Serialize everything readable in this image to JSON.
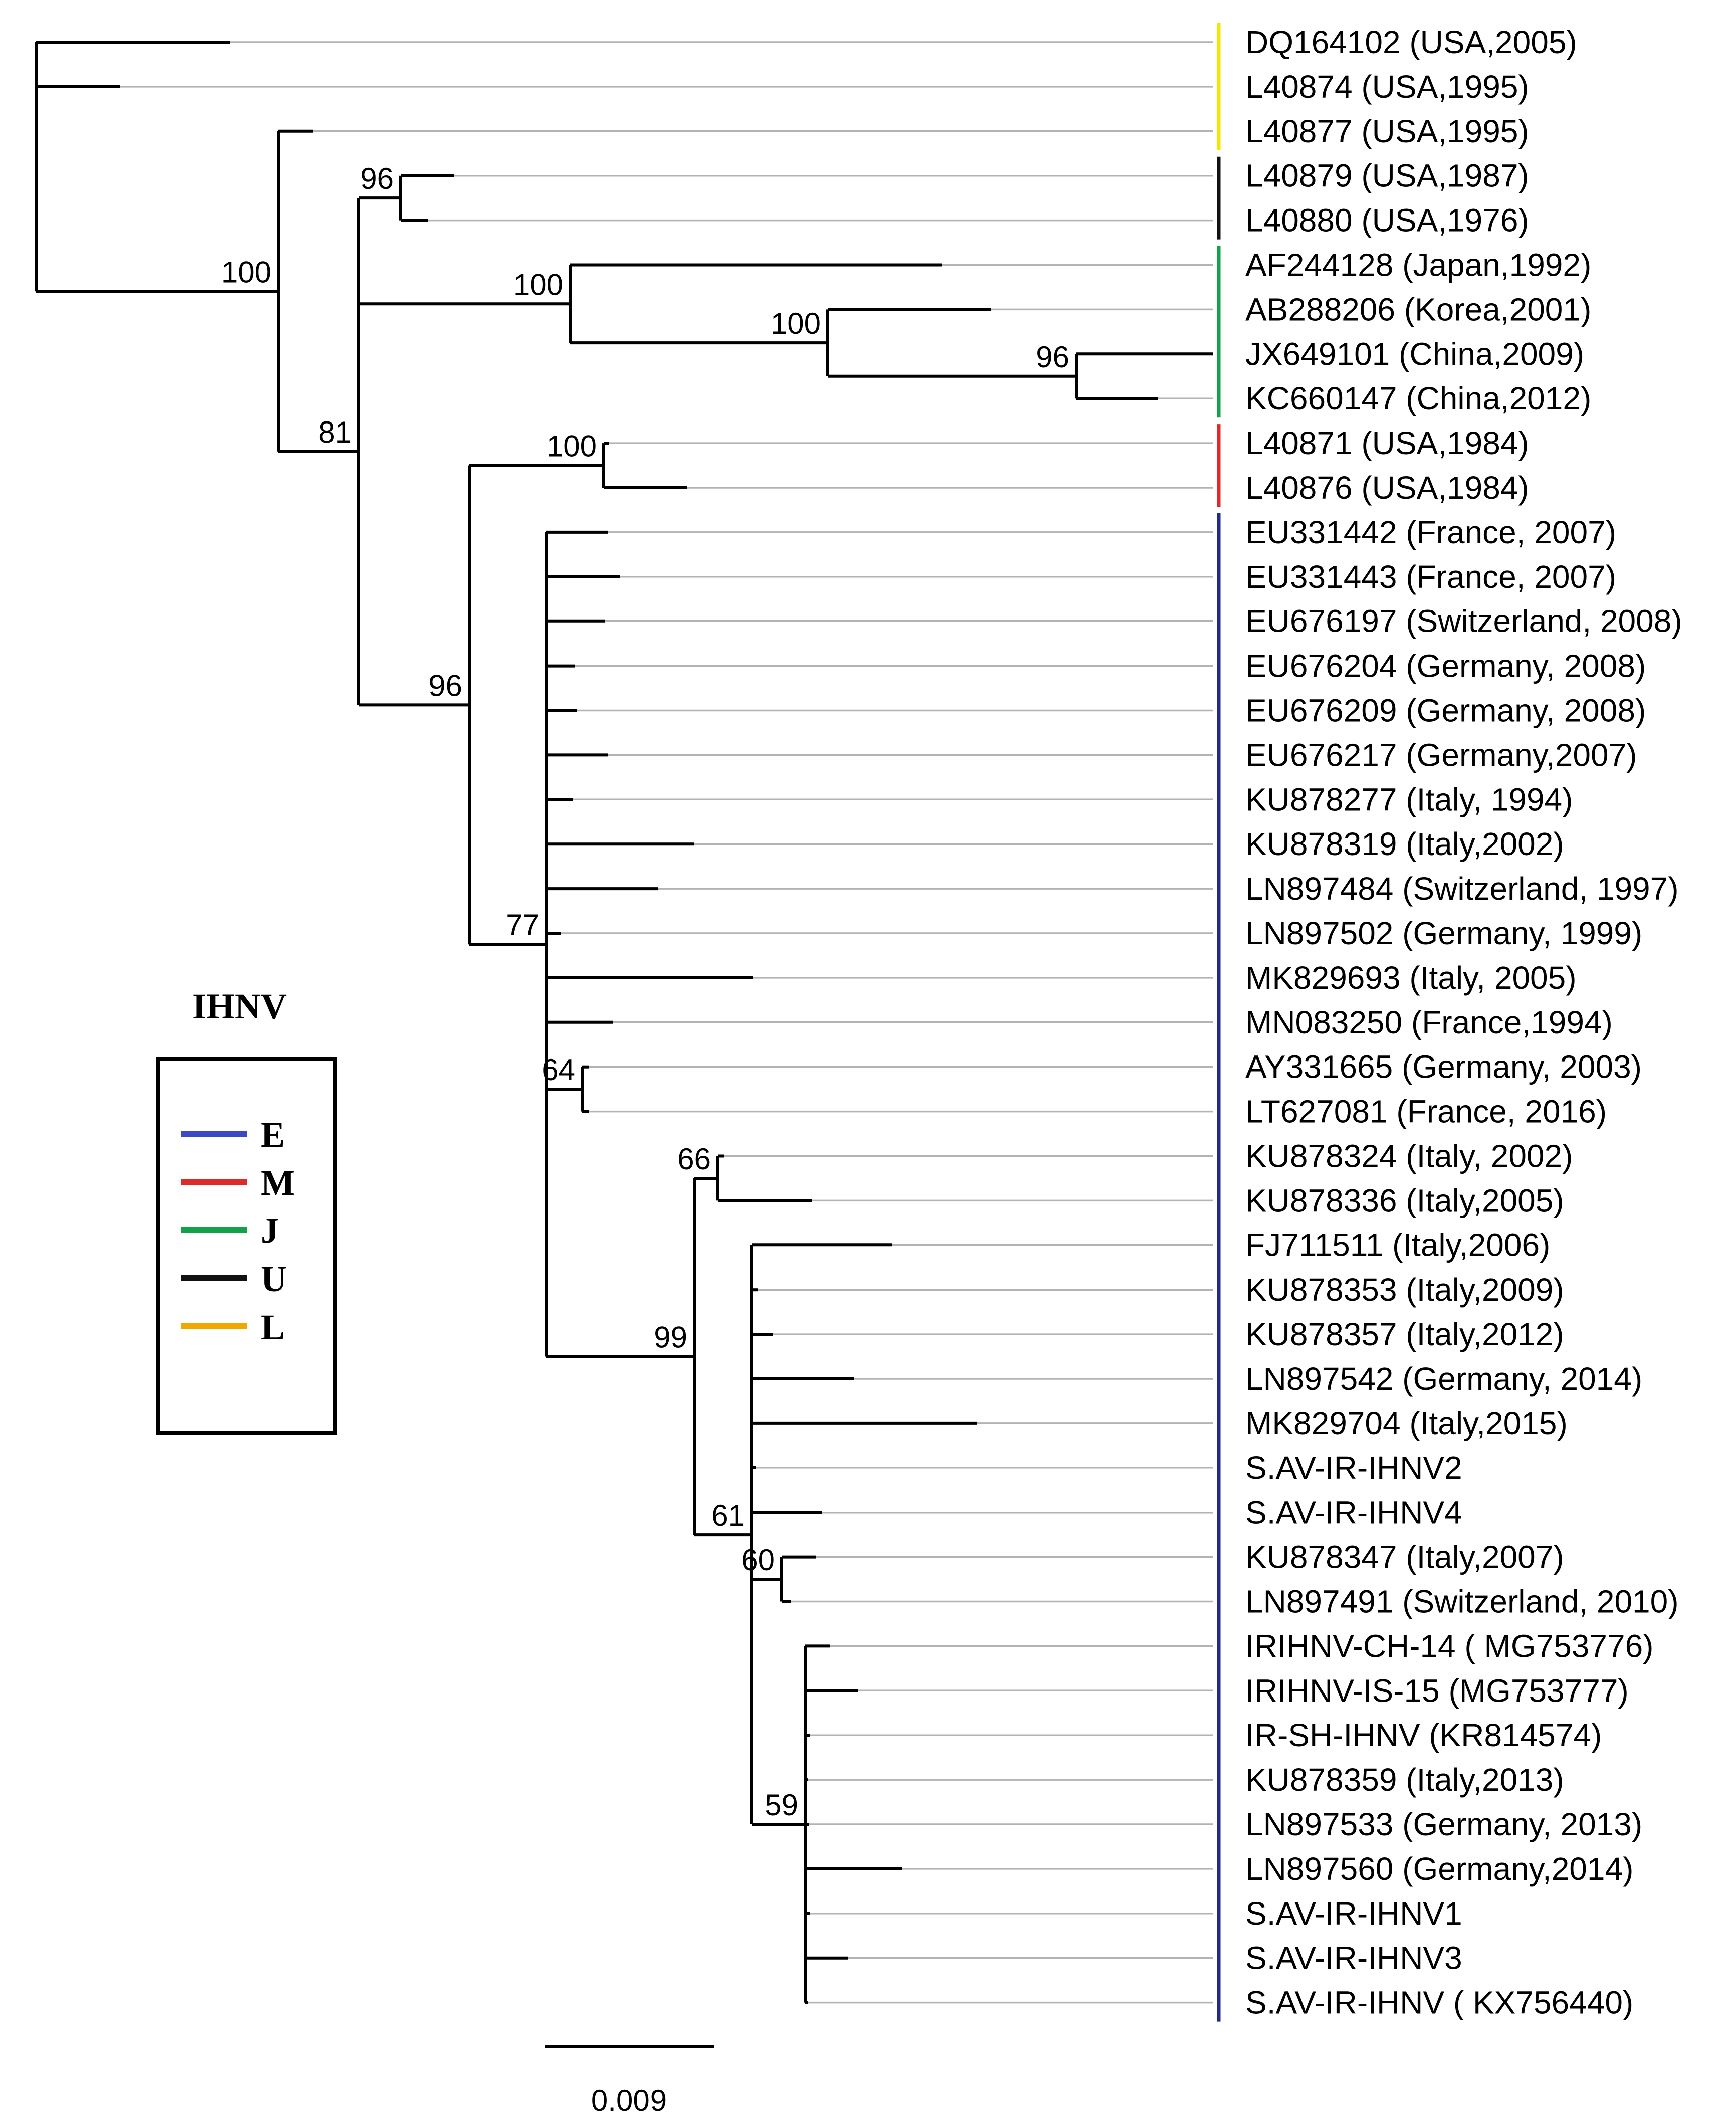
{
  "figure": {
    "scale_bar_label": "0.009",
    "legend_title": "IHNV",
    "legend": [
      {
        "label": "E",
        "color": "#3b49c4"
      },
      {
        "label": "M",
        "color": "#e02a2a"
      },
      {
        "label": "J",
        "color": "#12a14a"
      },
      {
        "label": "U",
        "color": "#111111"
      },
      {
        "label": "L",
        "color": "#f0a800"
      }
    ],
    "taxa": [
      "DQ164102 (USA,2005)",
      "L40874 (USA,1995)",
      "L40877 (USA,1995)",
      "L40879 (USA,1987)",
      "L40880 (USA,1976)",
      "AF244128 (Japan,1992)",
      "AB288206 (Korea,2001)",
      "JX649101 (China,2009)",
      "KC660147 (China,2012)",
      "L40871 (USA,1984)",
      "L40876 (USA,1984)",
      "EU331442 (France, 2007)",
      "EU331443 (France, 2007)",
      "EU676197 (Switzerland, 2008)",
      "EU676204 (Germany, 2008)",
      "EU676209 (Germany, 2008)",
      "EU676217 (Germany,2007)",
      "KU878277 (Italy, 1994)",
      "KU878319 (Italy,2002)",
      "LN897484 (Switzerland, 1997)",
      "LN897502 (Germany, 1999)",
      "MK829693 (Italy, 2005)",
      "MN083250 (France,1994)",
      "AY331665 (Germany, 2003)",
      "LT627081 (France, 2016)",
      "KU878324 (Italy, 2002)",
      "KU878336 (Italy,2005)",
      "FJ711511 (Italy,2006)",
      "KU878353 (Italy,2009)",
      "KU878357 (Italy,2012)",
      "LN897542 (Germany, 2014)",
      "MK829704 (Italy,2015)",
      "S.AV-IR-IHNV2",
      "S.AV-IR-IHNV4",
      "KU878347 (Italy,2007)",
      "LN897491 (Switzerland, 2010)",
      "IRIHNV-CH-14 ( MG753776)",
      "IRIHNV-IS-15 (MG753777)",
      "IR-SH-IHNV (KR814574)",
      "KU878359 (Italy,2013)",
      "LN897533 (Germany, 2013)",
      "LN897560 (Germany,2014)",
      "S.AV-IR-IHNV1",
      "S.AV-IR-IHNV3",
      "S.AV-IR-IHNV ( KX756440)"
    ],
    "bootstrap_values": [
      "100",
      "96",
      "81",
      "100",
      "100",
      "96",
      "100",
      "96",
      "77",
      "64",
      "66",
      "99",
      "61",
      "60",
      "59"
    ],
    "clade_bars": [
      {
        "genogroup": "L",
        "color": "#f3e600",
        "first_taxon": 0,
        "last_taxon": 2
      },
      {
        "genogroup": "U",
        "color": "#111111",
        "first_taxon": 3,
        "last_taxon": 4
      },
      {
        "genogroup": "J",
        "color": "#12a14a",
        "first_taxon": 5,
        "last_taxon": 8
      },
      {
        "genogroup": "M",
        "color": "#e02a2a",
        "first_taxon": 9,
        "last_taxon": 10
      },
      {
        "genogroup": "E",
        "color": "#1f2a8a",
        "first_taxon": 11,
        "last_taxon": 44
      }
    ]
  }
}
